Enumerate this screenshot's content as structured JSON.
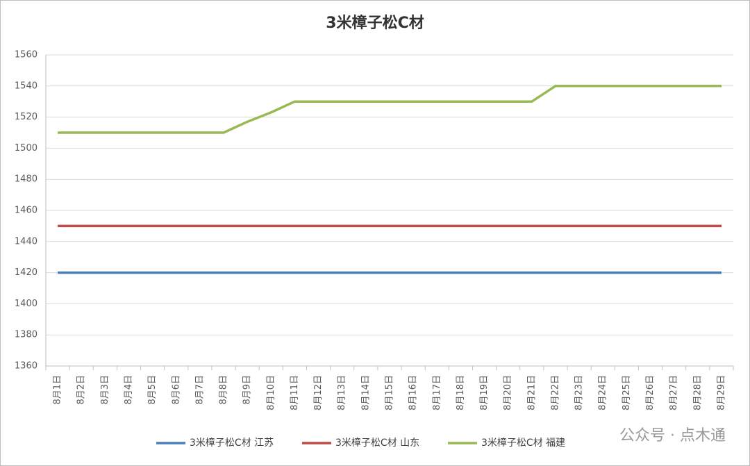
{
  "chart_data": {
    "type": "line",
    "title": "3米樟子松C材",
    "categories": [
      "8月1日",
      "8月2日",
      "8月3日",
      "8月4日",
      "8月5日",
      "8月6日",
      "8月7日",
      "8月8日",
      "8月9日",
      "8月10日",
      "8月11日",
      "8月12日",
      "8月13日",
      "8月14日",
      "8月15日",
      "8月16日",
      "8月17日",
      "8月18日",
      "8月19日",
      "8月20日",
      "8月21日",
      "8月22日",
      "8月23日",
      "8月24日",
      "8月25日",
      "8月26日",
      "8月27日",
      "8月28日",
      "8月29日"
    ],
    "series": [
      {
        "name": "3米樟子松C材 江苏",
        "color": "#4a7ebb",
        "values": [
          1420,
          1420,
          1420,
          1420,
          1420,
          1420,
          1420,
          1420,
          1420,
          1420,
          1420,
          1420,
          1420,
          1420,
          1420,
          1420,
          1420,
          1420,
          1420,
          1420,
          1420,
          1420,
          1420,
          1420,
          1420,
          1420,
          1420,
          1420,
          1420
        ]
      },
      {
        "name": "3米樟子松C材 山东",
        "color": "#be4b48",
        "values": [
          1450,
          1450,
          1450,
          1450,
          1450,
          1450,
          1450,
          1450,
          1450,
          1450,
          1450,
          1450,
          1450,
          1450,
          1450,
          1450,
          1450,
          1450,
          1450,
          1450,
          1450,
          1450,
          1450,
          1450,
          1450,
          1450,
          1450,
          1450,
          1450
        ]
      },
      {
        "name": "3米樟子松C材 福建",
        "color": "#98b954",
        "values": [
          1510,
          1510,
          1510,
          1510,
          1510,
          1510,
          1510,
          1510,
          1517,
          1523,
          1530,
          1530,
          1530,
          1530,
          1530,
          1530,
          1530,
          1530,
          1530,
          1530,
          1530,
          1540,
          1540,
          1540,
          1540,
          1540,
          1540,
          1540,
          1540
        ]
      }
    ],
    "ylim": [
      1360,
      1560
    ],
    "yticks": [
      1360,
      1380,
      1400,
      1420,
      1440,
      1460,
      1480,
      1500,
      1520,
      1540,
      1560
    ],
    "grid": true,
    "legend": "bottom",
    "watermark": "公众号 · 点木通"
  }
}
